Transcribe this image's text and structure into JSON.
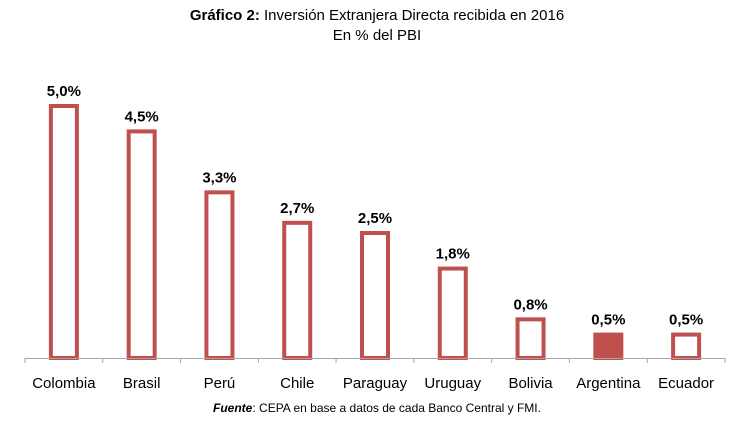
{
  "header": {
    "title_prefix": "Gráfico 2:",
    "title_rest": "Inversión Extranjera Directa recibida en 2016",
    "subtitle": "En % del PBI"
  },
  "footer": {
    "source_lead": "Fuente",
    "source_rest": ": CEPA en base a datos de cada Banco Central y FMI."
  },
  "colors": {
    "bar_stroke": "#c0504d",
    "bar_highlight": "#c0504d",
    "axis": "#a6a6a6"
  },
  "chart_data": {
    "type": "bar",
    "title": "Gráfico 2: Inversión Extranjera Directa recibida en 2016",
    "subtitle": "En % del PBI",
    "xlabel": "",
    "ylabel": "",
    "categories": [
      "Colombia",
      "Brasil",
      "Perú",
      "Chile",
      "Paraguay",
      "Uruguay",
      "Bolivia",
      "Argentina",
      "Ecuador"
    ],
    "values": [
      5.0,
      4.5,
      3.3,
      2.7,
      2.5,
      1.8,
      0.8,
      0.5,
      0.5
    ],
    "value_labels": [
      "5,0%",
      "4,5%",
      "3,3%",
      "2,7%",
      "2,5%",
      "1,8%",
      "0,8%",
      "0,5%",
      "0,5%"
    ],
    "highlighted_category": "Argentina",
    "ylim": [
      0,
      5.0
    ],
    "grid": false,
    "legend": "none"
  }
}
